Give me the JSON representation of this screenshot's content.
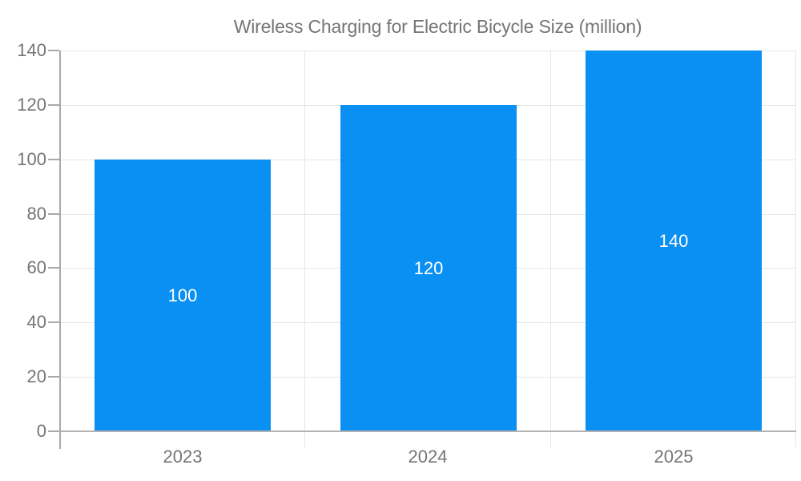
{
  "legend": {
    "series_label": "Wireless Charging for Electric Bicycle Size (million)"
  },
  "chart_data": {
    "type": "bar",
    "title": "Wireless Charging for Electric Bicycle Size (million)",
    "categories": [
      "2023",
      "2024",
      "2025"
    ],
    "values": [
      100,
      120,
      140
    ],
    "bar_labels": [
      "100",
      "120",
      "140"
    ],
    "series": [
      {
        "name": "Wireless Charging for Electric Bicycle Size (million)",
        "values": [
          100,
          120,
          140
        ]
      }
    ],
    "xlabel": "",
    "ylabel": "",
    "ylim": [
      0,
      140
    ],
    "ytick_step": 20,
    "yticks": [
      0,
      20,
      40,
      60,
      80,
      100,
      120,
      140
    ],
    "grid": true,
    "legend_position": "top-center",
    "colors": {
      "bar": "#0a8ff2",
      "bar_value_text": "#ffffff",
      "axis_label": "#757575",
      "title_text": "#757575",
      "axis_line": "#b3b3b3",
      "gridline": "#e6e6e6",
      "background": "#ffffff"
    }
  }
}
